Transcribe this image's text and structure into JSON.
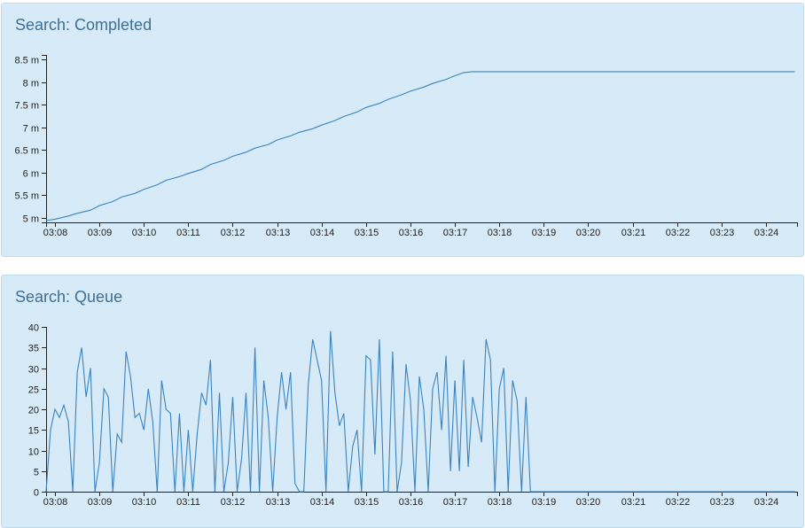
{
  "colors": {
    "panel_bg": "#d6ebf7",
    "line": "#3b83c0",
    "title": "#3f6f93"
  },
  "panels": [
    {
      "title": "Search: Completed"
    },
    {
      "title": "Search: Queue"
    }
  ],
  "chart_data": [
    {
      "type": "line",
      "title": "Search: Completed",
      "xlabel": "",
      "ylabel": "",
      "x_unit": "minute-of-clock (03:08 = 188)",
      "x_tick_labels": [
        "03:08",
        "03:09",
        "03:10",
        "03:11",
        "03:12",
        "03:13",
        "03:14",
        "03:15",
        "03:16",
        "03:17",
        "03:18",
        "03:19",
        "03:20",
        "03:21",
        "03:22",
        "03:23",
        "03:24"
      ],
      "y_tick_labels": [
        "5 m",
        "5.5 m",
        "6 m",
        "6.5 m",
        "7 m",
        "7.5 m",
        "8 m",
        "8.5 m"
      ],
      "y_ticks": [
        5,
        5.5,
        6,
        6.5,
        7,
        7.5,
        8,
        8.5
      ],
      "xlim": [
        "03:07.8",
        "03:24.7"
      ],
      "ylim": [
        4.9,
        8.6
      ],
      "grid": false,
      "series": [
        {
          "points": [
            [
              "03:07.8",
              4.94
            ],
            [
              "03:08.0",
              4.97
            ],
            [
              "03:08.3",
              5.04
            ],
            [
              "03:08.5",
              5.1
            ],
            [
              "03:08.8",
              5.17
            ],
            [
              "03:09.0",
              5.27
            ],
            [
              "03:09.3",
              5.36
            ],
            [
              "03:09.5",
              5.46
            ],
            [
              "03:09.8",
              5.54
            ],
            [
              "03:10.0",
              5.63
            ],
            [
              "03:10.3",
              5.73
            ],
            [
              "03:10.5",
              5.83
            ],
            [
              "03:10.8",
              5.91
            ],
            [
              "03:11.0",
              5.98
            ],
            [
              "03:11.3",
              6.07
            ],
            [
              "03:11.5",
              6.18
            ],
            [
              "03:11.8",
              6.27
            ],
            [
              "03:12.0",
              6.36
            ],
            [
              "03:12.3",
              6.45
            ],
            [
              "03:12.5",
              6.54
            ],
            [
              "03:12.8",
              6.62
            ],
            [
              "03:13.0",
              6.72
            ],
            [
              "03:13.3",
              6.81
            ],
            [
              "03:13.5",
              6.89
            ],
            [
              "03:13.8",
              6.97
            ],
            [
              "03:14.0",
              7.05
            ],
            [
              "03:14.3",
              7.15
            ],
            [
              "03:14.5",
              7.24
            ],
            [
              "03:14.8",
              7.34
            ],
            [
              "03:15.0",
              7.44
            ],
            [
              "03:15.3",
              7.53
            ],
            [
              "03:15.5",
              7.62
            ],
            [
              "03:15.8",
              7.72
            ],
            [
              "03:16.0",
              7.8
            ],
            [
              "03:16.3",
              7.89
            ],
            [
              "03:16.5",
              7.97
            ],
            [
              "03:16.8",
              8.06
            ],
            [
              "03:17.0",
              8.14
            ],
            [
              "03:17.2",
              8.21
            ],
            [
              "03:17.4",
              8.23
            ],
            [
              "03:18.0",
              8.23
            ],
            [
              "03:20.0",
              8.23
            ],
            [
              "03:22.0",
              8.23
            ],
            [
              "03:24.0",
              8.23
            ],
            [
              "03:24.65",
              8.23
            ]
          ]
        }
      ]
    },
    {
      "type": "line",
      "title": "Search: Queue",
      "xlabel": "",
      "ylabel": "",
      "x_unit": "minute-of-clock (03:08 = 188)",
      "x_tick_labels": [
        "03:08",
        "03:09",
        "03:10",
        "03:11",
        "03:12",
        "03:13",
        "03:14",
        "03:15",
        "03:16",
        "03:17",
        "03:18",
        "03:19",
        "03:20",
        "03:21",
        "03:22",
        "03:23",
        "03:24"
      ],
      "y_tick_labels": [
        "0",
        "5",
        "10",
        "15",
        "20",
        "25",
        "30",
        "35",
        "40"
      ],
      "y_ticks": [
        0,
        5,
        10,
        15,
        20,
        25,
        30,
        35,
        40
      ],
      "xlim": [
        "03:07.8",
        "03:24.7"
      ],
      "ylim": [
        0,
        40
      ],
      "grid": false,
      "series": [
        {
          "points": [
            [
              "03:07.8",
              0
            ],
            [
              "03:07.9",
              15
            ],
            [
              "03:08.0",
              20
            ],
            [
              "03:08.1",
              18
            ],
            [
              "03:08.2",
              21
            ],
            [
              "03:08.3",
              17
            ],
            [
              "03:08.4",
              0
            ],
            [
              "03:08.5",
              29
            ],
            [
              "03:08.6",
              35
            ],
            [
              "03:08.7",
              23
            ],
            [
              "03:08.8",
              30
            ],
            [
              "03:08.9",
              0
            ],
            [
              "03:09.0",
              7
            ],
            [
              "03:09.1",
              25
            ],
            [
              "03:09.2",
              23
            ],
            [
              "03:09.3",
              0
            ],
            [
              "03:09.4",
              14
            ],
            [
              "03:09.5",
              12
            ],
            [
              "03:09.6",
              34
            ],
            [
              "03:09.7",
              28
            ],
            [
              "03:09.8",
              18
            ],
            [
              "03:09.9",
              19
            ],
            [
              "03:10.0",
              15
            ],
            [
              "03:10.1",
              25
            ],
            [
              "03:10.2",
              17
            ],
            [
              "03:10.3",
              0
            ],
            [
              "03:10.4",
              27
            ],
            [
              "03:10.5",
              20
            ],
            [
              "03:10.6",
              19
            ],
            [
              "03:10.7",
              0
            ],
            [
              "03:10.8",
              19
            ],
            [
              "03:10.9",
              0
            ],
            [
              "03:11.0",
              15
            ],
            [
              "03:11.1",
              0
            ],
            [
              "03:11.2",
              14
            ],
            [
              "03:11.3",
              24
            ],
            [
              "03:11.4",
              21
            ],
            [
              "03:11.5",
              32
            ],
            [
              "03:11.6",
              0
            ],
            [
              "03:11.7",
              24
            ],
            [
              "03:11.8",
              0
            ],
            [
              "03:11.9",
              7
            ],
            [
              "03:12.0",
              23
            ],
            [
              "03:12.1",
              0
            ],
            [
              "03:12.2",
              8
            ],
            [
              "03:12.3",
              24
            ],
            [
              "03:12.4",
              0
            ],
            [
              "03:12.5",
              35
            ],
            [
              "03:12.6",
              0
            ],
            [
              "03:12.7",
              27
            ],
            [
              "03:12.8",
              18
            ],
            [
              "03:12.9",
              0
            ],
            [
              "03:13.0",
              18
            ],
            [
              "03:13.1",
              29
            ],
            [
              "03:13.2",
              20
            ],
            [
              "03:13.3",
              29
            ],
            [
              "03:13.4",
              2
            ],
            [
              "03:13.5",
              0
            ],
            [
              "03:13.6",
              0
            ],
            [
              "03:13.7",
              26
            ],
            [
              "03:13.8",
              37
            ],
            [
              "03:13.9",
              32
            ],
            [
              "03:14.0",
              27
            ],
            [
              "03:14.1",
              0
            ],
            [
              "03:14.2",
              39
            ],
            [
              "03:14.3",
              24
            ],
            [
              "03:14.4",
              16
            ],
            [
              "03:14.5",
              19
            ],
            [
              "03:14.6",
              0
            ],
            [
              "03:14.7",
              11
            ],
            [
              "03:14.8",
              15
            ],
            [
              "03:14.9",
              0
            ],
            [
              "03:15.0",
              33
            ],
            [
              "03:15.1",
              32
            ],
            [
              "03:15.2",
              9
            ],
            [
              "03:15.3",
              37
            ],
            [
              "03:15.4",
              0
            ],
            [
              "03:15.5",
              0
            ],
            [
              "03:15.6",
              34
            ],
            [
              "03:15.7",
              0
            ],
            [
              "03:15.8",
              7
            ],
            [
              "03:15.9",
              31
            ],
            [
              "03:16.0",
              22
            ],
            [
              "03:16.1",
              0
            ],
            [
              "03:16.2",
              28
            ],
            [
              "03:16.3",
              20
            ],
            [
              "03:16.4",
              0
            ],
            [
              "03:16.5",
              25
            ],
            [
              "03:16.6",
              29
            ],
            [
              "03:16.7",
              15
            ],
            [
              "03:16.8",
              33
            ],
            [
              "03:16.9",
              5
            ],
            [
              "03:17.0",
              27
            ],
            [
              "03:17.1",
              5
            ],
            [
              "03:17.2",
              32
            ],
            [
              "03:17.3",
              6
            ],
            [
              "03:17.4",
              23
            ],
            [
              "03:17.5",
              18
            ],
            [
              "03:17.6",
              12
            ],
            [
              "03:17.7",
              37
            ],
            [
              "03:17.8",
              32
            ],
            [
              "03:17.9",
              0
            ],
            [
              "03:18.0",
              25
            ],
            [
              "03:18.1",
              30
            ],
            [
              "03:18.2",
              0
            ],
            [
              "03:18.3",
              27
            ],
            [
              "03:18.4",
              22
            ],
            [
              "03:18.5",
              0
            ],
            [
              "03:18.6",
              23
            ],
            [
              "03:18.7",
              0
            ],
            [
              "03:18.8",
              0
            ],
            [
              "03:20.0",
              0
            ],
            [
              "03:22.0",
              0
            ],
            [
              "03:24.65",
              0
            ]
          ]
        }
      ]
    }
  ]
}
